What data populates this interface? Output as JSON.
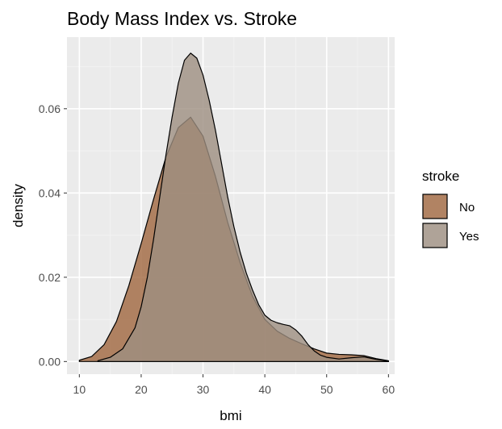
{
  "chart_data": {
    "type": "area",
    "title": "Body Mass Index vs. Stroke",
    "xlabel": "bmi",
    "ylabel": "density",
    "xlim": [
      8,
      61
    ],
    "ylim": [
      -0.003,
      0.077
    ],
    "xticks": [
      10,
      20,
      30,
      40,
      50,
      60
    ],
    "yticks": [
      0.0,
      0.02,
      0.04,
      0.06
    ],
    "ytick_labels": [
      "0.00",
      "0.02",
      "0.04",
      "0.06"
    ],
    "grid": true,
    "legend": {
      "title": "stroke",
      "placement": "right"
    },
    "colors": {
      "panel_background": "#ebebeb",
      "grid_major": "#ffffff",
      "grid_minor": "#f2f2f2",
      "outline": "#000000"
    },
    "series": [
      {
        "name": "No",
        "color": "#a0663f",
        "x": [
          10,
          12,
          14,
          16,
          18,
          20,
          22,
          24,
          26,
          28,
          30,
          32,
          34,
          36,
          38,
          40,
          42,
          44,
          46,
          48,
          50,
          52,
          54,
          56,
          58,
          60
        ],
        "y": [
          0.0003,
          0.0012,
          0.004,
          0.0095,
          0.018,
          0.028,
          0.0385,
          0.0485,
          0.0555,
          0.058,
          0.0535,
          0.044,
          0.033,
          0.0235,
          0.0155,
          0.01,
          0.0072,
          0.0055,
          0.0042,
          0.003,
          0.002,
          0.0017,
          0.0016,
          0.0014,
          0.0007,
          0.0002
        ]
      },
      {
        "name": "Yes",
        "color": "#9d8f81",
        "x": [
          13,
          15,
          17,
          19,
          20,
          21,
          22,
          23,
          24,
          25,
          26,
          27,
          28,
          29,
          30,
          31,
          32,
          33,
          34,
          35,
          36,
          37,
          38,
          39,
          40,
          41,
          42,
          43,
          44,
          45,
          46,
          47,
          48,
          49,
          50,
          52,
          54,
          56,
          58,
          60
        ],
        "y": [
          0.0002,
          0.001,
          0.003,
          0.008,
          0.013,
          0.02,
          0.029,
          0.039,
          0.049,
          0.058,
          0.066,
          0.0715,
          0.0732,
          0.072,
          0.068,
          0.062,
          0.055,
          0.047,
          0.039,
          0.032,
          0.026,
          0.021,
          0.017,
          0.0135,
          0.011,
          0.0098,
          0.0092,
          0.0088,
          0.0085,
          0.0075,
          0.006,
          0.004,
          0.0025,
          0.0015,
          0.001,
          0.0006,
          0.0009,
          0.0011,
          0.0005,
          0.0001
        ]
      }
    ]
  }
}
